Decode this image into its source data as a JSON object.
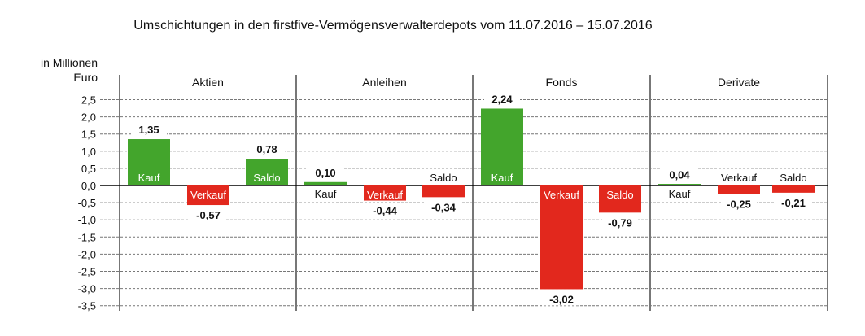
{
  "chart_data": {
    "type": "bar",
    "title": "Umschichtungen in den firstfive-Vermögensverwalterdepots vom 11.07.2016 – 15.07.2016",
    "ylabel": [
      "in Millionen",
      "Euro"
    ],
    "ylim": [
      -3.5,
      2.5
    ],
    "yticks": [
      "2,5",
      "2,0",
      "1,5",
      "1,0",
      "0,5",
      "0,0",
      "-0,5",
      "-1,0",
      "-1,5",
      "-2,0",
      "-2,5",
      "-3,0",
      "-3,5"
    ],
    "ytick_values": [
      2.5,
      2.0,
      1.5,
      1.0,
      0.5,
      0.0,
      -0.5,
      -1.0,
      -1.5,
      -2.0,
      -2.5,
      -3.0,
      -3.5
    ],
    "grid": true,
    "groups": [
      {
        "name": "Aktien",
        "bars": [
          {
            "label": "Kauf",
            "value": 1.35,
            "value_label": "1,35"
          },
          {
            "label": "Verkauf",
            "value": -0.57,
            "value_label": "-0,57"
          },
          {
            "label": "Saldo",
            "value": 0.78,
            "value_label": "0,78"
          }
        ]
      },
      {
        "name": "Anleihen",
        "bars": [
          {
            "label": "Kauf",
            "value": 0.1,
            "value_label": "0,10"
          },
          {
            "label": "Verkauf",
            "value": -0.44,
            "value_label": "-0,44"
          },
          {
            "label": "Saldo",
            "value": -0.34,
            "value_label": "-0,34"
          }
        ]
      },
      {
        "name": "Fonds",
        "bars": [
          {
            "label": "Kauf",
            "value": 2.24,
            "value_label": "2,24"
          },
          {
            "label": "Verkauf",
            "value": -3.02,
            "value_label": "-3,02"
          },
          {
            "label": "Saldo",
            "value": -0.79,
            "value_label": "-0,79"
          }
        ]
      },
      {
        "name": "Derivate",
        "bars": [
          {
            "label": "Kauf",
            "value": 0.04,
            "value_label": "0,04"
          },
          {
            "label": "Verkauf",
            "value": -0.25,
            "value_label": "-0,25"
          },
          {
            "label": "Saldo",
            "value": -0.21,
            "value_label": "-0,21"
          }
        ]
      }
    ],
    "colors": {
      "positive": "#43a52c",
      "negative": "#e2281d"
    }
  }
}
